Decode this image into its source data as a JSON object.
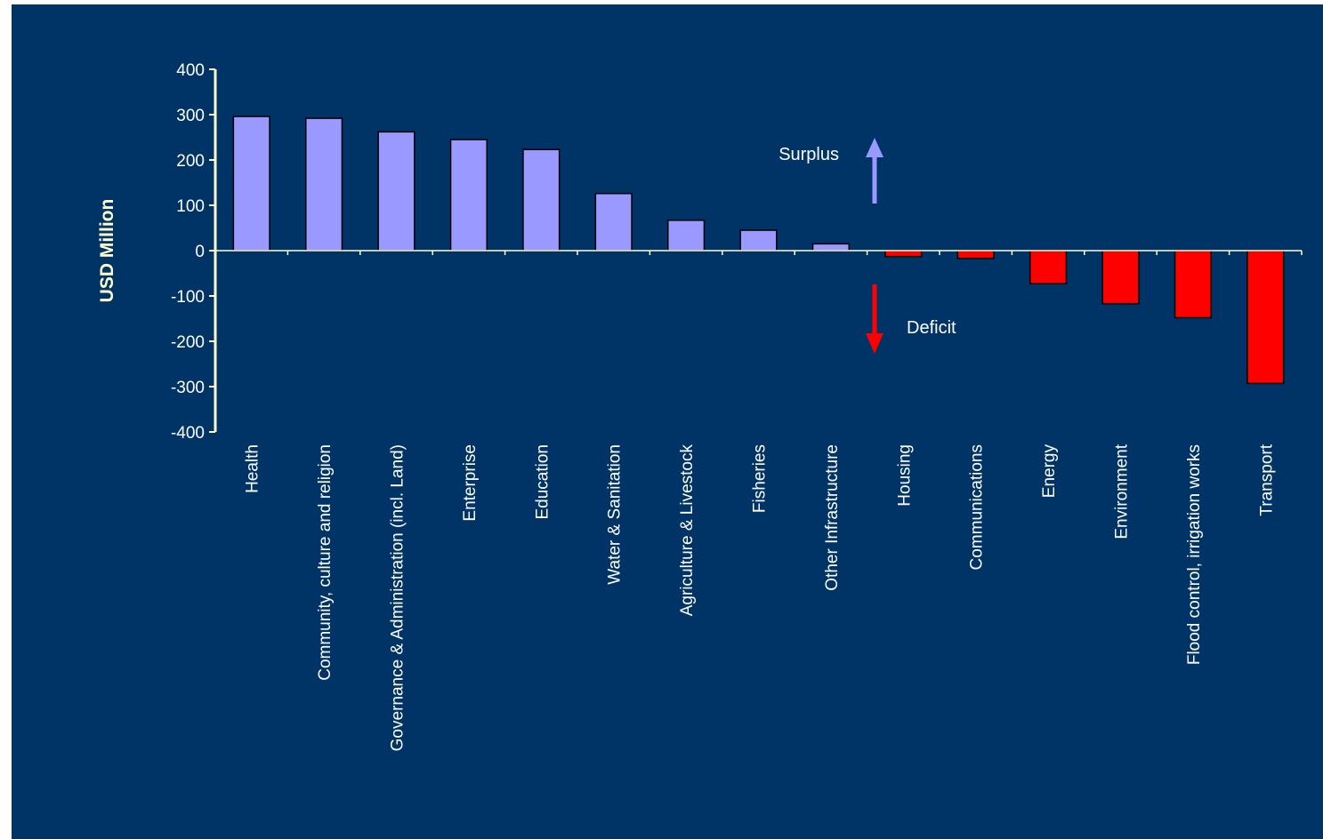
{
  "chart_data": {
    "type": "bar",
    "ylabel": "USD Million",
    "ylim": [
      -400,
      400
    ],
    "yticks": [
      400,
      300,
      200,
      100,
      0,
      -100,
      -200,
      -300,
      -400
    ],
    "grid": false,
    "categories": [
      "Health",
      "Community, culture and religion",
      "Governance & Administration (incl. Land)",
      "Enterprise",
      "Education",
      "Water & Sanitation",
      "Agriculture & Livestock",
      "Fisheries",
      "Other Infrastructure",
      "Housing",
      "Communications",
      "Energy",
      "Environment",
      "Flood control, irrigation works",
      "Transport"
    ],
    "values": [
      296,
      292,
      262,
      245,
      223,
      126,
      67,
      45,
      15,
      -13,
      -17,
      -73,
      -117,
      -148,
      -293
    ],
    "colors": {
      "positive": "#9999ff",
      "negative": "#ff0000",
      "axis": "#ffffcc",
      "background": "#003366"
    },
    "annotations": [
      {
        "text": "Surplus",
        "direction": "up",
        "color": "#9999ff"
      },
      {
        "text": "Deficit",
        "direction": "down",
        "color": "#ff0000"
      }
    ]
  }
}
